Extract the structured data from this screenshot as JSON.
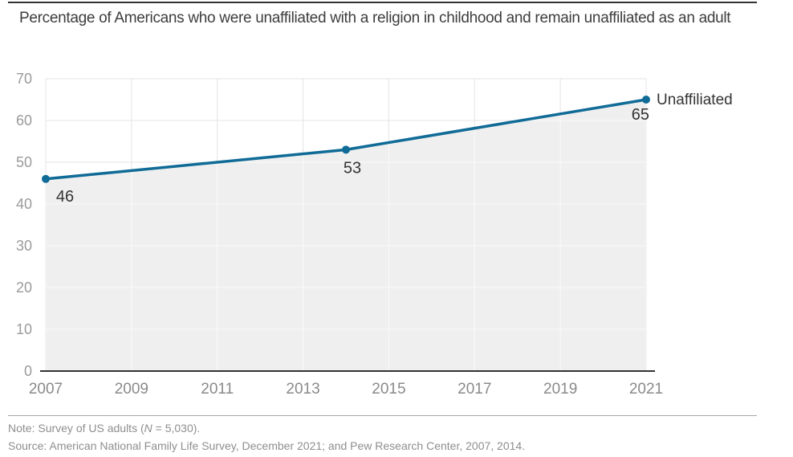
{
  "chart_data": {
    "type": "line",
    "title": "Percentage of Americans who were unaffiliated with a religion in childhood and remain unaffiliated as an adult",
    "series": [
      {
        "name": "Unaffiliated",
        "points": [
          {
            "x": 2007,
            "y": 46
          },
          {
            "x": 2014,
            "y": 53
          },
          {
            "x": 2021,
            "y": 65
          }
        ]
      }
    ],
    "x_ticks": [
      2007,
      2009,
      2011,
      2013,
      2015,
      2017,
      2019,
      2021
    ],
    "y_ticks": [
      0,
      10,
      20,
      30,
      40,
      50,
      60,
      70
    ],
    "xlim": [
      2007,
      2021
    ],
    "ylim": [
      0,
      70
    ],
    "grid": true,
    "area_fill": true,
    "legend_position": "right-of-last-point",
    "colors": {
      "line": "#106b97",
      "area": "#efefef",
      "grid": "#e4e4e4",
      "grid_on_area": "#fafafa",
      "axis": "#333333",
      "y_tick_labels": "#9b9b9b",
      "x_tick_labels": "#8a8a8a",
      "value_labels": "#333333"
    }
  },
  "footer": {
    "note_prefix": "Note: Survey of US adults (",
    "note_n": "N",
    "note_suffix": " = 5,030).",
    "source": "Source: American National Family Life Survey, December 2021; and Pew Research Center, 2007, 2014."
  }
}
